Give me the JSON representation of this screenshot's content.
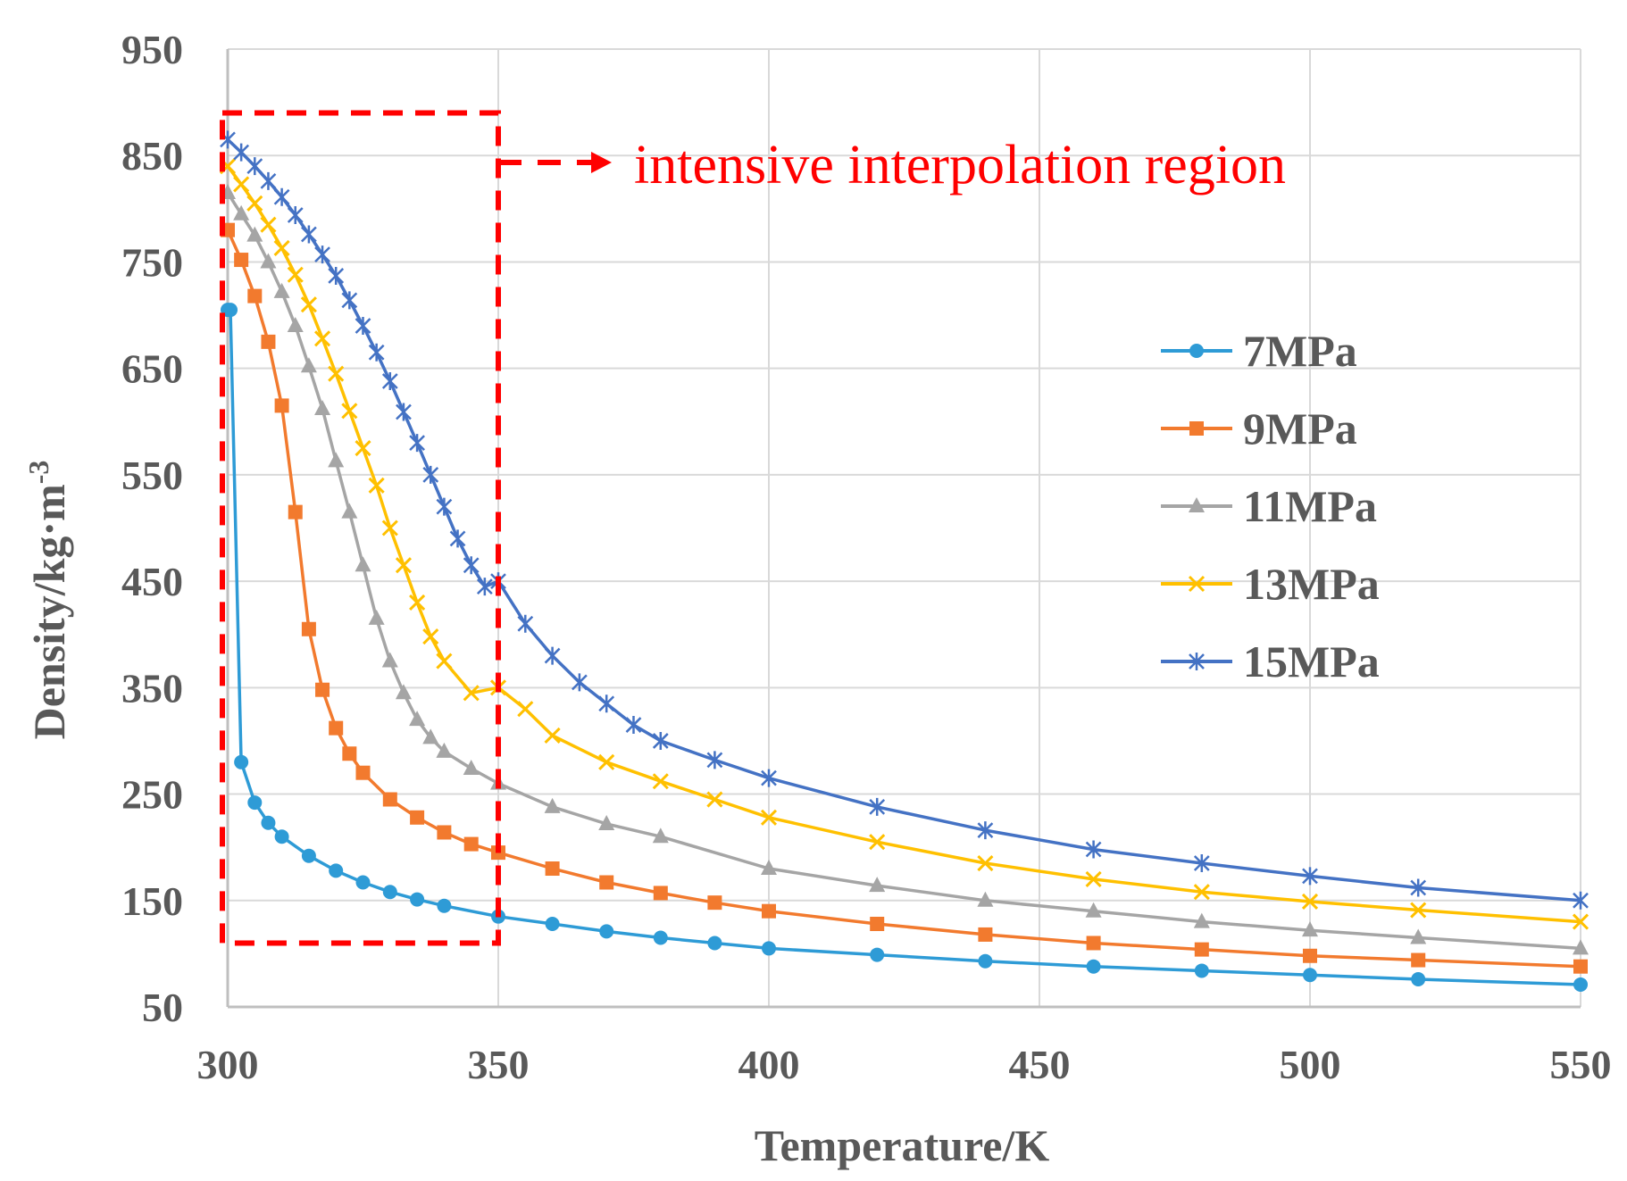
{
  "chart_data": {
    "type": "line",
    "xlabel": "Temperature/K",
    "ylabel": "Density/kg·m",
    "ylabel_sup": "-3",
    "xlim": [
      300,
      550
    ],
    "ylim": [
      50,
      950
    ],
    "xticks": [
      300,
      350,
      400,
      450,
      500,
      550
    ],
    "yticks": [
      50,
      150,
      250,
      350,
      450,
      550,
      650,
      750,
      850,
      950
    ],
    "grid": true,
    "legend_position": "right",
    "annotation": {
      "text": "intensive interpolation region",
      "region_x": [
        300,
        350
      ],
      "region_y": [
        110,
        890
      ],
      "color": "#ff0000"
    },
    "series": [
      {
        "name": "7MPa",
        "color": "#2e9bd6",
        "marker": "circle",
        "x": [
          300,
          300.5,
          302.5,
          305,
          307.5,
          310,
          315,
          320,
          325,
          330,
          335,
          340,
          350,
          360,
          370,
          380,
          390,
          400,
          420,
          440,
          460,
          480,
          500,
          520,
          550
        ],
        "y": [
          705,
          705,
          280,
          242,
          223,
          210,
          192,
          178,
          167,
          158,
          151,
          145,
          135,
          128,
          121,
          115,
          110,
          105,
          99,
          93,
          88,
          84,
          80,
          76,
          71
        ]
      },
      {
        "name": "9MPa",
        "color": "#f27a2e",
        "marker": "square",
        "x": [
          300,
          302.5,
          305,
          307.5,
          310,
          312.5,
          315,
          317.5,
          320,
          322.5,
          325,
          330,
          335,
          340,
          345,
          350,
          360,
          370,
          380,
          390,
          400,
          420,
          440,
          460,
          480,
          500,
          520,
          550
        ],
        "y": [
          780,
          752,
          718,
          675,
          615,
          515,
          405,
          348,
          312,
          288,
          270,
          245,
          228,
          214,
          203,
          195,
          180,
          167,
          157,
          148,
          140,
          128,
          118,
          110,
          104,
          98,
          94,
          88
        ]
      },
      {
        "name": "11MPa",
        "color": "#a5a5a5",
        "marker": "triangle",
        "x": [
          300,
          302.5,
          305,
          307.5,
          310,
          312.5,
          315,
          317.5,
          320,
          322.5,
          325,
          327.5,
          330,
          332.5,
          335,
          337.5,
          340,
          345,
          350,
          360,
          370,
          380,
          400,
          420,
          440,
          460,
          480,
          500,
          520,
          550
        ],
        "y": [
          815,
          795,
          775,
          750,
          722,
          690,
          652,
          612,
          563,
          515,
          465,
          415,
          375,
          345,
          320,
          303,
          290,
          274,
          260,
          238,
          222,
          210,
          180,
          164,
          150,
          140,
          130,
          122,
          115,
          105
        ]
      },
      {
        "name": "13MPa",
        "color": "#ffc000",
        "marker": "x",
        "x": [
          300,
          302.5,
          305,
          307.5,
          310,
          312.5,
          315,
          317.5,
          320,
          322.5,
          325,
          327.5,
          330,
          332.5,
          335,
          337.5,
          340,
          345,
          350,
          355,
          360,
          370,
          380,
          390,
          400,
          420,
          440,
          460,
          480,
          500,
          520,
          550
        ],
        "y": [
          840,
          823,
          805,
          785,
          763,
          738,
          710,
          678,
          645,
          610,
          575,
          540,
          500,
          465,
          430,
          398,
          375,
          345,
          350,
          330,
          305,
          280,
          262,
          245,
          228,
          205,
          185,
          170,
          158,
          149,
          141,
          130
        ]
      },
      {
        "name": "15MPa",
        "color": "#4472c4",
        "marker": "star",
        "x": [
          300,
          302.5,
          305,
          307.5,
          310,
          312.5,
          315,
          317.5,
          320,
          322.5,
          325,
          327.5,
          330,
          332.5,
          335,
          337.5,
          340,
          342.5,
          345,
          347.5,
          350,
          355,
          360,
          365,
          370,
          375,
          380,
          390,
          400,
          420,
          440,
          460,
          480,
          500,
          520,
          550
        ],
        "y": [
          865,
          853,
          840,
          826,
          811,
          794,
          776,
          757,
          737,
          714,
          690,
          665,
          638,
          609,
          580,
          550,
          520,
          490,
          465,
          445,
          450,
          410,
          380,
          355,
          335,
          315,
          300,
          282,
          265,
          238,
          216,
          198,
          185,
          173,
          162,
          150
        ]
      }
    ]
  }
}
